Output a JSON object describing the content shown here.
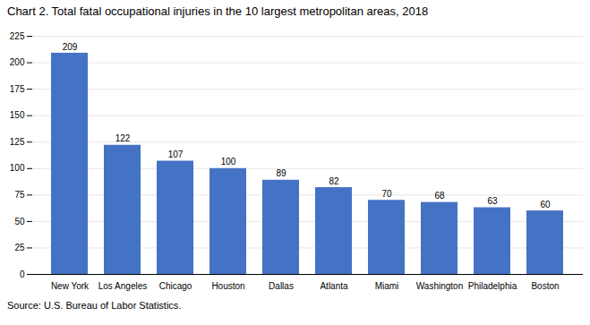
{
  "chart_data": {
    "type": "bar",
    "title": "Chart 2. Total fatal occupational injuries in the 10 largest metropolitan areas, 2018",
    "caption": "Source: U.S. Bureau of Labor Statistics.",
    "categories": [
      "New York",
      "Los Angeles",
      "Chicago",
      "Houston",
      "Dallas",
      "Atlanta",
      "Miami",
      "Washington",
      "Philadelphia",
      "Boston"
    ],
    "values": [
      209,
      122,
      107,
      100,
      89,
      82,
      70,
      68,
      63,
      60
    ],
    "color": "#4472C4",
    "ylim": [
      0,
      225
    ],
    "yticks": [
      0,
      25,
      50,
      75,
      100,
      125,
      150,
      175,
      200,
      225
    ],
    "grid": true,
    "data_labels": true
  }
}
